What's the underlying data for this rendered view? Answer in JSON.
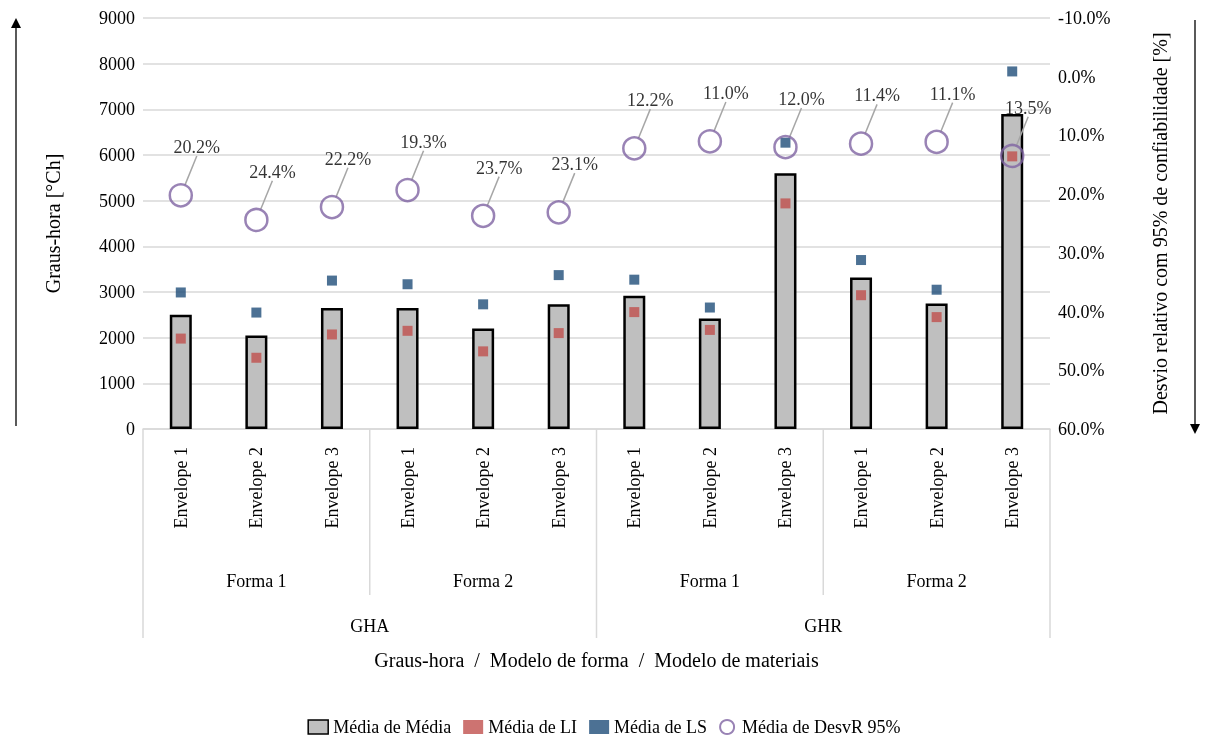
{
  "chart_data": {
    "type": "bar",
    "ylabel": "Graus-hora [°Ch]",
    "y2label": "Desvio relativo com 95% de confiabilidade [%]",
    "categories": [
      "Envelope 1",
      "Envelope 2",
      "Envelope 3",
      "Envelope 1",
      "Envelope 2",
      "Envelope 3",
      "Envelope 1",
      "Envelope 2",
      "Envelope 3",
      "Envelope 1",
      "Envelope 2",
      "Envelope 3"
    ],
    "annotations": [
      "Forma 1",
      "Forma 2",
      "Forma 1",
      "Forma 2",
      "GHA",
      "GHR",
      "Graus-hora  /  Modelo de forma  /  Modelo de materiais"
    ],
    "series": [
      {
        "name": "Média de Média",
        "color": "#bfbfbf",
        "values": [
          2500,
          2050,
          2650,
          2650,
          2200,
          2730,
          2920,
          2420,
          5600,
          3320,
          2750,
          6900
        ]
      },
      {
        "name": "Média de LI",
        "type": "scatter",
        "marker": "square",
        "color": "#c0504d",
        "values": [
          1980,
          1560,
          2070,
          2150,
          1700,
          2100,
          2560,
          2170,
          4940,
          2930,
          2450,
          5970
        ]
      },
      {
        "name": "Média de LS",
        "type": "scatter",
        "marker": "square",
        "color": "#1f4e79",
        "values": [
          2990,
          2550,
          3250,
          3170,
          2730,
          3370,
          3270,
          2660,
          6270,
          3700,
          3050,
          7830
        ]
      },
      {
        "name": "Média de DesvR 95%",
        "type": "scatter",
        "marker": "circle",
        "axis": "y2",
        "color": "#8064a2",
        "values": [
          20.2,
          24.4,
          22.2,
          19.3,
          23.7,
          23.1,
          12.2,
          11.0,
          12.0,
          11.4,
          11.1,
          13.5
        ],
        "value_labels": [
          "20.2%",
          "24.4%",
          "22.2%",
          "19.3%",
          "23.7%",
          "23.1%",
          "12.2%",
          "11.0%",
          "12.0%",
          "11.4%",
          "11.1%",
          "13.5%"
        ]
      }
    ],
    "ylim": [
      0,
      9000
    ],
    "yticks": [
      0,
      1000,
      2000,
      3000,
      4000,
      5000,
      6000,
      7000,
      8000,
      9000
    ],
    "y2lim": [
      60,
      -10
    ],
    "y2ticks": [
      {
        "value": -10,
        "label": "-10.0%"
      },
      {
        "value": 0,
        "label": "0.0%"
      },
      {
        "value": 10,
        "label": "10.0%"
      },
      {
        "value": 20,
        "label": "20.0%"
      },
      {
        "value": 30,
        "label": "30.0%"
      },
      {
        "value": 40,
        "label": "40.0%"
      },
      {
        "value": 50,
        "label": "50.0%"
      },
      {
        "value": 60,
        "label": "60.0%"
      }
    ],
    "grid": "y",
    "legend": "bottom"
  }
}
